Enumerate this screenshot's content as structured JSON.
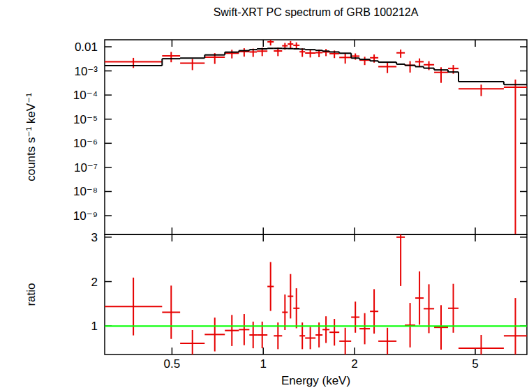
{
  "chart_data": [
    {
      "type": "scatter",
      "title": "Swift-XRT PC spectrum of GRB 100212A",
      "y_label": "counts s⁻¹ keV⁻¹",
      "log": true,
      "tick_labels": "y",
      "xlim": [
        0.3,
        7.4
      ],
      "xticks": [
        0.5,
        1,
        2,
        5
      ],
      "ylim": [
        1.66e-10,
        0.0195
      ],
      "yticks": [
        0.01,
        {
          "value": 0.001,
          "label": "10⁻³"
        },
        {
          "value": 0.0001,
          "label": "10⁻⁴"
        },
        {
          "value": 1e-05,
          "label": "10⁻⁵"
        },
        {
          "value": 1e-06,
          "label": "10⁻⁶"
        },
        {
          "value": 1e-07,
          "label": "10⁻⁷"
        },
        {
          "value": 1e-08,
          "label": "10⁻⁸"
        },
        {
          "value": 1e-09,
          "label": "10⁻⁹"
        }
      ],
      "series": [
        {
          "type": "errorbar",
          "color": "#e60000",
          "x": [
            0.373,
            0.497,
            0.584,
            0.692,
            0.788,
            0.865,
            0.926,
            0.992,
            1.057,
            1.118,
            1.179,
            1.23,
            1.286,
            1.345,
            1.429,
            1.527,
            1.61,
            1.716,
            1.863,
            2.012,
            2.16,
            2.32,
            2.566,
            2.838,
            3.048,
            3.274,
            3.516,
            3.857,
            4.232,
            5.23,
            6.78
          ],
          "x_low": [
            0.3,
            0.464,
            0.532,
            0.641,
            0.747,
            0.831,
            0.9,
            0.953,
            1.032,
            1.083,
            1.154,
            1.204,
            1.256,
            1.317,
            1.374,
            1.487,
            1.568,
            1.653,
            1.781,
            1.949,
            2.076,
            2.248,
            2.395,
            2.749,
            2.929,
            3.171,
            3.379,
            3.659,
            4.066,
            4.403,
            6.21
          ],
          "x_high": [
            0.464,
            0.532,
            0.641,
            0.747,
            0.831,
            0.9,
            0.953,
            1.032,
            1.083,
            1.154,
            1.204,
            1.256,
            1.317,
            1.374,
            1.487,
            1.568,
            1.653,
            1.781,
            1.949,
            2.076,
            2.248,
            2.395,
            2.749,
            2.929,
            3.171,
            3.379,
            3.659,
            4.066,
            4.403,
            6.21,
            7.396
          ],
          "values": [
            0.0024,
            0.0042,
            0.0021,
            0.0037,
            0.0054,
            0.0063,
            0.0061,
            0.0066,
            0.016,
            0.0067,
            0.011,
            0.013,
            0.0115,
            0.0062,
            0.0055,
            0.0057,
            0.0061,
            0.0052,
            0.0036,
            0.0041,
            0.0028,
            0.0035,
            0.0015,
            0.0056,
            0.0017,
            0.0024,
            0.0018,
            0.00087,
            0.00126,
            0.00018,
            0.00021
          ],
          "y_err": [
            0.00107,
            0.00192,
            0.00102,
            0.00175,
            0.0021,
            0.0024,
            0.0023,
            0.0025,
            0.0047,
            0.0026,
            0.0034,
            0.0042,
            0.0037,
            0.0024,
            0.0019,
            0.002,
            0.002,
            0.0018,
            0.0016,
            0.0012,
            0.00105,
            0.0013,
            0.00069,
            0.0021,
            0.00085,
            0.0009,
            0.00072,
            0.00055,
            0.0005,
            9e-05,
            0.00023
          ]
        },
        {
          "type": "step",
          "color": "#000000",
          "x_low": [
            0.3,
            0.464,
            0.532,
            0.641,
            0.747,
            0.831,
            0.9,
            0.953,
            1.032,
            1.083,
            1.154,
            1.204,
            1.256,
            1.317,
            1.374,
            1.487,
            1.568,
            1.653,
            1.781,
            1.949,
            2.076,
            2.248,
            2.395,
            2.749,
            2.929,
            3.171,
            3.379,
            3.659,
            4.066,
            4.403,
            6.21
          ],
          "x_high": [
            0.464,
            0.532,
            0.641,
            0.747,
            0.831,
            0.9,
            0.953,
            1.032,
            1.083,
            1.154,
            1.204,
            1.256,
            1.317,
            1.374,
            1.487,
            1.568,
            1.653,
            1.781,
            1.949,
            2.076,
            2.248,
            2.395,
            2.749,
            2.929,
            3.171,
            3.379,
            3.659,
            4.066,
            4.403,
            6.21,
            7.396
          ],
          "values": [
            0.00165,
            0.0032,
            0.0034,
            0.0046,
            0.006,
            0.0069,
            0.0076,
            0.0082,
            0.0086,
            0.0086,
            0.0085,
            0.0084,
            0.0082,
            0.008,
            0.0076,
            0.0071,
            0.0066,
            0.0061,
            0.0054,
            0.0034,
            0.003,
            0.0026,
            0.0023,
            0.0019,
            0.0017,
            0.0015,
            0.0013,
            0.0011,
            0.0009,
            0.00036,
            0.00027
          ]
        }
      ]
    },
    {
      "type": "scatter",
      "x_label": "Energy (keV)",
      "y_label": "ratio",
      "log": "x",
      "tick_labels": true,
      "xlim": [
        0.3,
        7.4
      ],
      "xticks": [
        0.5,
        1,
        2,
        5
      ],
      "ylim": [
        0.36,
        3.06
      ],
      "yticks": [
        1,
        2,
        3
      ],
      "series": [
        {
          "type": "errorbar",
          "color": "#e60000",
          "x": [
            0.373,
            0.497,
            0.584,
            0.692,
            0.788,
            0.865,
            0.926,
            0.992,
            1.057,
            1.118,
            1.179,
            1.23,
            1.286,
            1.345,
            1.429,
            1.527,
            1.61,
            1.716,
            1.863,
            2.012,
            2.16,
            2.32,
            2.566,
            2.838,
            3.048,
            3.274,
            3.516,
            3.857,
            4.232,
            5.23,
            6.78
          ],
          "x_low": [
            0.3,
            0.464,
            0.532,
            0.641,
            0.747,
            0.831,
            0.9,
            0.953,
            1.032,
            1.083,
            1.154,
            1.204,
            1.256,
            1.317,
            1.374,
            1.487,
            1.568,
            1.653,
            1.781,
            1.949,
            2.076,
            2.248,
            2.395,
            2.749,
            2.929,
            3.171,
            3.379,
            3.659,
            4.066,
            4.403,
            6.21
          ],
          "x_high": [
            0.464,
            0.532,
            0.641,
            0.747,
            0.831,
            0.9,
            0.953,
            1.032,
            1.083,
            1.154,
            1.204,
            1.256,
            1.317,
            1.374,
            1.487,
            1.568,
            1.653,
            1.781,
            1.949,
            2.076,
            2.248,
            2.395,
            2.749,
            2.929,
            3.171,
            3.379,
            3.659,
            4.066,
            4.403,
            6.21,
            7.396
          ],
          "values": [
            1.44,
            1.31,
            0.61,
            0.81,
            0.9,
            0.92,
            0.8,
            0.8,
            1.89,
            0.78,
            1.31,
            1.67,
            1.4,
            0.78,
            0.73,
            0.8,
            0.92,
            0.86,
            0.66,
            1.2,
            0.94,
            1.33,
            0.66,
            3.0,
            1.02,
            1.63,
            1.39,
            0.97,
            1.4,
            0.5,
            0.78
          ],
          "y_err": [
            0.65,
            0.6,
            0.3,
            0.38,
            0.35,
            0.35,
            0.3,
            0.3,
            0.55,
            0.3,
            0.4,
            0.5,
            0.45,
            0.3,
            0.25,
            0.28,
            0.3,
            0.3,
            0.3,
            0.35,
            0.35,
            0.5,
            0.3,
            1.1,
            0.5,
            0.6,
            0.55,
            0.5,
            0.55,
            0.3,
            0.85
          ]
        },
        {
          "type": "hline",
          "color": "#00ff00",
          "values": [
            1
          ]
        }
      ]
    }
  ]
}
